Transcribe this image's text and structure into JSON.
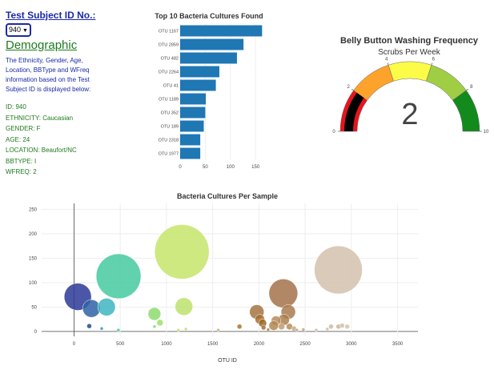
{
  "sidebar": {
    "title": "Test Subject ID No.:",
    "selected_id": "940",
    "heading": "Demographic",
    "description": "The Ethnicity, Gender, Age, Location, BBType and WFreq information based on the Test Subject ID is displayed below:",
    "metadata": [
      "ID: 940",
      "ETHNICITY: Caucasian",
      "GENDER: F",
      "AGE: 24",
      "LOCATION: Beaufort/NC",
      "BBTYPE: I",
      "WFREQ: 2"
    ]
  },
  "colors": {
    "bar": "#1f77b4",
    "gauge_needle": "#000000",
    "gauge_steps": [
      "#e8131b",
      "#fda22b",
      "#fcfc48",
      "#9fce44",
      "#138a1c"
    ]
  },
  "chart_data": [
    {
      "type": "bar",
      "orientation": "horizontal",
      "title": "Top 10 Bacteria Cultures Found",
      "categories": [
        "OTU 1167",
        "OTU 2859",
        "OTU 482",
        "OTU 2264",
        "OTU 41",
        "OTU 1189",
        "OTU 352",
        "OTU 189",
        "OTU 2318",
        "OTU 1977"
      ],
      "values": [
        163,
        126,
        113,
        78,
        71,
        51,
        50,
        47,
        40,
        40
      ],
      "xlim": [
        0,
        172
      ],
      "xticks": [
        0,
        50,
        100,
        150
      ]
    },
    {
      "type": "gauge",
      "title": "Belly Button Washing Frequency",
      "subtitle": "Scrubs Per Week",
      "value": 2,
      "range": [
        0,
        10
      ],
      "ticks": [
        0,
        2,
        4,
        6,
        8,
        10
      ],
      "steps": [
        [
          0,
          2
        ],
        [
          2,
          4
        ],
        [
          4,
          6
        ],
        [
          6,
          8
        ],
        [
          8,
          10
        ]
      ]
    },
    {
      "type": "scatter",
      "title": "Bacteria Cultures Per Sample",
      "xlabel": "OTU ID",
      "xlim": [
        -350,
        3720
      ],
      "ylim": [
        -10,
        262
      ],
      "xticks": [
        0,
        500,
        1000,
        1500,
        2000,
        2500,
        3000,
        3500
      ],
      "yticks": [
        0,
        50,
        100,
        150,
        200,
        250
      ],
      "points": [
        {
          "x": 1167,
          "y": 163,
          "size": 34,
          "color": "#c5e56a"
        },
        {
          "x": 482,
          "y": 113,
          "size": 28,
          "color": "#45c9a0"
        },
        {
          "x": 2859,
          "y": 126,
          "size": 30,
          "color": "#d3c1ad"
        },
        {
          "x": 41,
          "y": 71,
          "size": 17,
          "color": "#2c3a97"
        },
        {
          "x": 2264,
          "y": 78,
          "size": 18,
          "color": "#a5724a"
        },
        {
          "x": 189,
          "y": 47,
          "size": 11,
          "color": "#2f62a6"
        },
        {
          "x": 352,
          "y": 50,
          "size": 11,
          "color": "#3fb5c2"
        },
        {
          "x": 1189,
          "y": 51,
          "size": 11,
          "color": "#bde26d"
        },
        {
          "x": 2318,
          "y": 40,
          "size": 9,
          "color": "#a97a4d"
        },
        {
          "x": 1977,
          "y": 40,
          "size": 9,
          "color": "#a57442"
        },
        {
          "x": 870,
          "y": 36,
          "size": 8,
          "color": "#8edb70"
        },
        {
          "x": 2270,
          "y": 24,
          "size": 7,
          "color": "#ad7f4d"
        },
        {
          "x": 2010,
          "y": 25,
          "size": 6,
          "color": "#a86f30"
        },
        {
          "x": 2185,
          "y": 22,
          "size": 6,
          "color": "#b88a5d"
        },
        {
          "x": 2160,
          "y": 12,
          "size": 6,
          "color": "#b38752"
        },
        {
          "x": 2040,
          "y": 17,
          "size": 5,
          "color": "#9a6a28"
        },
        {
          "x": 930,
          "y": 18,
          "size": 4,
          "color": "#9ee06a"
        },
        {
          "x": 2245,
          "y": 10,
          "size": 4,
          "color": "#c09a72"
        },
        {
          "x": 2330,
          "y": 10,
          "size": 4,
          "color": "#b88b5a"
        },
        {
          "x": 2380,
          "y": 6,
          "size": 3,
          "color": "#c9a57d"
        },
        {
          "x": 2780,
          "y": 10,
          "size": 3,
          "color": "#d1b8a0"
        },
        {
          "x": 2860,
          "y": 10,
          "size": 3,
          "color": "#cdb399"
        },
        {
          "x": 2900,
          "y": 12,
          "size": 3,
          "color": "#d4bfaa"
        },
        {
          "x": 2955,
          "y": 10,
          "size": 3,
          "color": "#d8c4b0"
        },
        {
          "x": 2050,
          "y": 8,
          "size": 3,
          "color": "#a8703a"
        },
        {
          "x": 2100,
          "y": 4,
          "size": 2,
          "color": "#b08050"
        },
        {
          "x": 1790,
          "y": 10,
          "size": 3,
          "color": "#a8742c"
        },
        {
          "x": 1560,
          "y": 3,
          "size": 2,
          "color": "#c9b078"
        },
        {
          "x": 1210,
          "y": 5,
          "size": 2,
          "color": "#c2e077"
        },
        {
          "x": 870,
          "y": 10,
          "size": 2,
          "color": "#7fd66f"
        },
        {
          "x": 165,
          "y": 11,
          "size": 3,
          "color": "#234b90"
        },
        {
          "x": 300,
          "y": 6,
          "size": 2,
          "color": "#3a8fbf"
        },
        {
          "x": 480,
          "y": 3,
          "size": 2,
          "color": "#45c0a8"
        },
        {
          "x": 1130,
          "y": 3,
          "size": 2,
          "color": "#bde26d"
        },
        {
          "x": 2480,
          "y": 4,
          "size": 2,
          "color": "#c6a27f"
        },
        {
          "x": 2740,
          "y": 5,
          "size": 2,
          "color": "#cdb8a1"
        },
        {
          "x": 2620,
          "y": 3,
          "size": 2,
          "color": "#cdb8a1"
        },
        {
          "x": 2410,
          "y": 3,
          "size": 2,
          "color": "#c4a27a"
        }
      ]
    }
  ]
}
